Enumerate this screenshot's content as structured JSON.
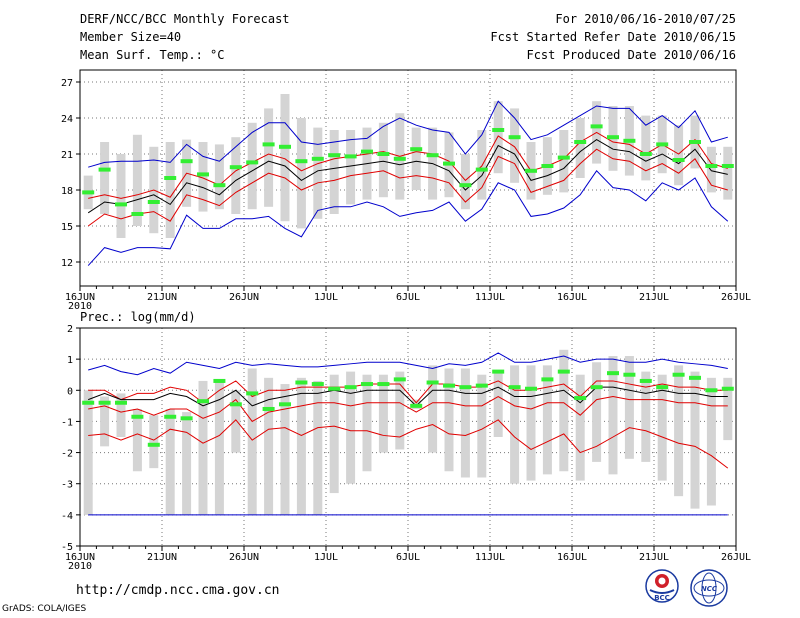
{
  "header": {
    "title": "DERF/NCC/BCC Monthly Forecast",
    "member_size": "Member Size=40",
    "variable": "Mean Surf. Temp.: °C",
    "period": "For 2010/06/16-2010/07/25",
    "started": "Fcst Started Refer Date 2010/06/15",
    "produced": "Fcst Produced Date 2010/06/16"
  },
  "footer": {
    "url": "http://cmdp.ncc.cma.gov.cn",
    "credit": "GrADS: COLA/IGES",
    "logo1": "BCC",
    "logo2": "NCC"
  },
  "colors": {
    "ens_max": "#0000cc",
    "ens_quart": "#e00000",
    "median": "#000000",
    "obs": "#33ee33",
    "box": "#d4d4d4"
  },
  "chart_data": [
    {
      "type": "line",
      "title": "Mean Surf. Temp.: °C",
      "x_tick_labels": [
        "16JUN",
        "21JUN",
        "26JUN",
        "1JUL",
        "6JUL",
        "11JUL",
        "16JUL",
        "21JUL",
        "26JUL"
      ],
      "x_tick_days": [
        0,
        5,
        10,
        15,
        20,
        25,
        30,
        35,
        40
      ],
      "year_label": "2010",
      "ylim": [
        10,
        28
      ],
      "y_ticks": [
        12,
        15,
        18,
        21,
        24,
        27
      ],
      "x": [
        0,
        1,
        2,
        3,
        4,
        5,
        6,
        7,
        8,
        9,
        10,
        11,
        12,
        13,
        14,
        15,
        16,
        17,
        18,
        19,
        20,
        21,
        22,
        23,
        24,
        25,
        26,
        27,
        28,
        29,
        30,
        31,
        32,
        33,
        34,
        35,
        36,
        37,
        38,
        39
      ],
      "series": [
        {
          "name": "ensemble max",
          "color": "#0000cc",
          "values": [
            19.9,
            20.3,
            20.4,
            20.4,
            20.5,
            20.3,
            21.8,
            20.8,
            20.4,
            21.6,
            22.8,
            23.6,
            23.6,
            22.0,
            21.8,
            22.0,
            22.2,
            22.3,
            23.3,
            24.0,
            23.4,
            23.0,
            22.8,
            21.0,
            22.6,
            25.4,
            24.0,
            22.2,
            22.6,
            23.4,
            24.2,
            25.0,
            24.8,
            24.8,
            23.4,
            24.2,
            23.2,
            24.6,
            22.0,
            22.4
          ]
        },
        {
          "name": "upper quartile",
          "color": "#e00000",
          "values": [
            17.3,
            17.6,
            17.3,
            17.6,
            18.0,
            17.4,
            19.4,
            19.0,
            18.4,
            19.6,
            20.3,
            21.0,
            20.6,
            19.6,
            20.2,
            20.6,
            20.8,
            21.0,
            21.2,
            20.8,
            21.2,
            21.0,
            20.4,
            18.8,
            20.0,
            22.5,
            21.6,
            19.6,
            20.0,
            20.6,
            22.0,
            22.8,
            22.0,
            21.8,
            21.0,
            21.8,
            21.0,
            22.2,
            20.2,
            19.8
          ]
        },
        {
          "name": "median",
          "color": "#000000",
          "values": [
            16.1,
            17.0,
            16.8,
            17.2,
            17.6,
            16.8,
            18.6,
            18.2,
            17.6,
            18.8,
            19.6,
            20.4,
            20.0,
            18.8,
            19.6,
            19.8,
            20.0,
            20.2,
            20.4,
            20.1,
            20.4,
            20.2,
            19.6,
            18.0,
            19.2,
            21.7,
            21.0,
            18.8,
            19.2,
            19.8,
            21.2,
            22.2,
            21.4,
            21.2,
            20.4,
            21.0,
            20.2,
            21.4,
            19.6,
            19.3
          ]
        },
        {
          "name": "lower quartile",
          "color": "#e00000",
          "values": [
            15.0,
            16.0,
            15.6,
            16.0,
            16.2,
            15.4,
            17.6,
            17.2,
            16.7,
            17.8,
            18.6,
            19.4,
            19.0,
            18.0,
            18.6,
            18.8,
            19.2,
            19.4,
            19.6,
            19.0,
            19.2,
            19.0,
            18.6,
            17.0,
            18.2,
            20.8,
            20.2,
            17.8,
            18.3,
            18.8,
            20.2,
            21.4,
            20.6,
            20.4,
            19.6,
            20.2,
            19.4,
            20.6,
            18.4,
            18.0
          ]
        },
        {
          "name": "ensemble min",
          "color": "#0000cc",
          "values": [
            11.7,
            13.2,
            12.8,
            13.2,
            13.2,
            13.1,
            15.9,
            14.8,
            14.8,
            15.6,
            15.6,
            15.8,
            14.8,
            14.1,
            16.3,
            16.6,
            16.6,
            17.0,
            16.6,
            15.8,
            16.1,
            16.3,
            17.0,
            15.4,
            16.4,
            18.6,
            18.0,
            15.8,
            16.0,
            16.5,
            17.6,
            19.6,
            18.2,
            18.0,
            17.1,
            18.6,
            18.0,
            19.0,
            16.6,
            15.4
          ]
        }
      ],
      "box_range": {
        "low": [
          16.4,
          16.0,
          14.0,
          15.0,
          14.4,
          14.0,
          16.6,
          16.2,
          16.4,
          16.0,
          16.4,
          16.6,
          15.4,
          14.8,
          15.6,
          16.0,
          16.8,
          17.2,
          17.4,
          17.2,
          18.0,
          17.2,
          17.4,
          16.4,
          17.2,
          19.4,
          18.6,
          17.2,
          17.6,
          17.8,
          19.0,
          20.2,
          19.6,
          19.2,
          18.8,
          19.4,
          18.4,
          19.8,
          17.8,
          17.2
        ],
        "high": [
          19.2,
          22.0,
          21.0,
          22.6,
          21.6,
          22.0,
          22.2,
          22.0,
          21.8,
          22.4,
          23.6,
          24.8,
          26.0,
          24.0,
          23.2,
          23.0,
          23.0,
          23.2,
          23.6,
          24.4,
          23.2,
          23.2,
          22.8,
          21.0,
          23.0,
          25.4,
          24.8,
          22.0,
          22.4,
          23.0,
          24.0,
          25.4,
          25.0,
          25.0,
          24.2,
          24.2,
          23.4,
          24.2,
          21.6,
          21.6
        ]
      },
      "observed": [
        17.8,
        19.7,
        16.8,
        16.0,
        17.0,
        19.0,
        20.4,
        19.3,
        18.4,
        19.9,
        20.3,
        21.8,
        21.6,
        20.4,
        20.6,
        20.9,
        20.8,
        21.2,
        21.0,
        20.6,
        21.4,
        20.9,
        20.2,
        18.4,
        19.7,
        23.0,
        22.4,
        19.6,
        20.0,
        20.7,
        22.0,
        23.3,
        22.4,
        22.1,
        21.0,
        21.8,
        20.5,
        22.0,
        20.0,
        20.0
      ]
    },
    {
      "type": "line",
      "title": "Prec.: log(mm/d)",
      "x_tick_labels": [
        "16JUN",
        "21JUN",
        "26JUN",
        "1JUL",
        "6JUL",
        "11JUL",
        "16JUL",
        "21JUL",
        "26JUL"
      ],
      "x_tick_days": [
        0,
        5,
        10,
        15,
        20,
        25,
        30,
        35,
        40
      ],
      "year_label": "2010",
      "ylim": [
        -5,
        2
      ],
      "y_ticks": [
        -5,
        -4,
        -3,
        -2,
        -1,
        0,
        1,
        2
      ],
      "x": [
        0,
        1,
        2,
        3,
        4,
        5,
        6,
        7,
        8,
        9,
        10,
        11,
        12,
        13,
        14,
        15,
        16,
        17,
        18,
        19,
        20,
        21,
        22,
        23,
        24,
        25,
        26,
        27,
        28,
        29,
        30,
        31,
        32,
        33,
        34,
        35,
        36,
        37,
        38,
        39
      ],
      "series": [
        {
          "name": "ensemble max",
          "color": "#0000cc",
          "values": [
            0.65,
            0.8,
            0.6,
            0.5,
            0.7,
            0.55,
            0.9,
            0.8,
            0.7,
            0.9,
            0.8,
            0.85,
            0.8,
            0.75,
            0.75,
            0.8,
            0.85,
            0.9,
            0.9,
            0.9,
            0.8,
            0.7,
            0.85,
            0.8,
            0.9,
            1.2,
            0.9,
            0.9,
            1.0,
            1.1,
            0.9,
            1.0,
            1.0,
            0.9,
            0.9,
            1.0,
            0.9,
            0.85,
            0.8,
            0.7
          ]
        },
        {
          "name": "upper quartile",
          "color": "#e00000",
          "values": [
            0.0,
            0.0,
            -0.3,
            -0.1,
            -0.1,
            0.1,
            0.0,
            -0.4,
            0.0,
            0.3,
            -0.2,
            0.0,
            0.0,
            0.1,
            0.1,
            0.1,
            0.1,
            0.2,
            0.2,
            0.2,
            -0.4,
            0.2,
            0.2,
            0.1,
            0.1,
            0.3,
            0.0,
            0.0,
            0.1,
            0.2,
            -0.2,
            0.3,
            0.3,
            0.2,
            0.1,
            0.2,
            0.1,
            0.1,
            0.0,
            0.0
          ]
        },
        {
          "name": "median",
          "color": "#000000",
          "values": [
            -0.3,
            -0.1,
            -0.3,
            -0.3,
            -0.3,
            -0.1,
            -0.2,
            -0.5,
            -0.3,
            0.0,
            -0.5,
            -0.3,
            -0.2,
            -0.1,
            -0.1,
            0.0,
            -0.1,
            0.0,
            0.0,
            0.0,
            -0.5,
            0.0,
            0.0,
            -0.1,
            -0.1,
            0.1,
            -0.2,
            -0.2,
            -0.1,
            0.0,
            -0.4,
            0.1,
            0.1,
            0.0,
            -0.1,
            0.0,
            -0.1,
            -0.1,
            -0.2,
            -0.2
          ]
        },
        {
          "name": "lower quartile",
          "color": "#e00000",
          "values": [
            -0.6,
            -0.5,
            -0.7,
            -0.6,
            -0.8,
            -0.6,
            -0.6,
            -0.9,
            -0.7,
            -0.3,
            -1.0,
            -0.7,
            -0.6,
            -0.5,
            -0.4,
            -0.4,
            -0.5,
            -0.4,
            -0.4,
            -0.4,
            -0.7,
            -0.4,
            -0.4,
            -0.5,
            -0.5,
            -0.2,
            -0.5,
            -0.6,
            -0.4,
            -0.4,
            -0.8,
            -0.3,
            -0.2,
            -0.3,
            -0.3,
            -0.3,
            -0.4,
            -0.4,
            -0.5,
            -0.5
          ]
        },
        {
          "name": "ensemble min",
          "color": "#e00000",
          "values": [
            -1.45,
            -1.4,
            -1.6,
            -1.4,
            -1.6,
            -1.25,
            -1.35,
            -1.7,
            -1.45,
            -0.95,
            -1.6,
            -1.25,
            -1.2,
            -1.45,
            -1.2,
            -1.15,
            -1.3,
            -1.3,
            -1.45,
            -1.5,
            -1.25,
            -1.1,
            -1.4,
            -1.45,
            -1.25,
            -0.95,
            -1.5,
            -1.9,
            -1.65,
            -1.4,
            -2.0,
            -1.8,
            -1.5,
            -1.2,
            -1.3,
            -1.5,
            -1.7,
            -1.8,
            -2.1,
            -2.5
          ]
        }
      ],
      "floor_line": {
        "color": "#0000cc",
        "value": -4.0
      },
      "box_range": {
        "low": [
          -4.0,
          -1.8,
          -1.5,
          -2.6,
          -2.5,
          -4.0,
          -4.0,
          -4.0,
          -4.0,
          -2.0,
          -4.0,
          -4.0,
          -4.0,
          -4.0,
          -4.0,
          -3.3,
          -3.0,
          -2.6,
          -2.0,
          -1.9,
          -0.6,
          -2.0,
          -2.6,
          -2.8,
          -2.8,
          -1.5,
          -3.0,
          -2.9,
          -2.7,
          -2.6,
          -2.9,
          -2.3,
          -2.7,
          -2.2,
          -2.3,
          -2.9,
          -3.4,
          -3.8,
          -3.7,
          -1.6
        ],
        "high": [
          0.0,
          -0.2,
          -0.1,
          -0.6,
          -0.8,
          -0.6,
          -0.7,
          0.3,
          0.3,
          0.0,
          0.7,
          0.4,
          0.2,
          0.4,
          0.3,
          0.5,
          0.6,
          0.5,
          0.5,
          0.6,
          -0.3,
          0.8,
          0.7,
          0.7,
          0.5,
          0.6,
          0.8,
          0.8,
          0.8,
          1.3,
          0.5,
          0.9,
          1.1,
          1.1,
          0.6,
          0.5,
          0.8,
          0.6,
          0.4,
          0.4
        ]
      },
      "observed": [
        -0.4,
        -0.4,
        -0.4,
        -0.85,
        -1.75,
        -0.85,
        -0.9,
        -0.35,
        0.3,
        -0.45,
        -0.1,
        -0.6,
        -0.45,
        0.25,
        0.2,
        0.05,
        0.1,
        0.2,
        0.2,
        0.35,
        -0.5,
        0.25,
        0.15,
        0.1,
        0.15,
        0.6,
        0.1,
        0.05,
        0.35,
        0.6,
        -0.25,
        0.1,
        0.55,
        0.5,
        0.3,
        0.1,
        0.5,
        0.4,
        0.0,
        0.05
      ]
    }
  ]
}
